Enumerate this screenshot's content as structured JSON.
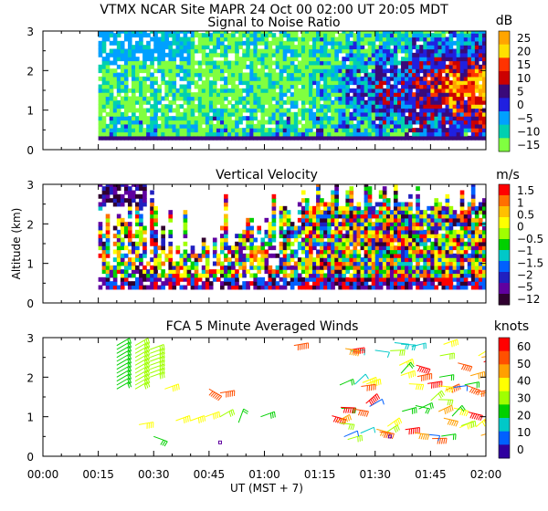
{
  "header": {
    "title": "VTMX  NCAR Site  MAPR 24 Oct 00  02:00 UT  20:05  MDT"
  },
  "ylabel": "Altitude (km)",
  "xlabel": "UT  (MST + 7)",
  "colors": {
    "frame": "#000000",
    "background": "#ffffff"
  },
  "chart_data": [
    {
      "type": "heatmap",
      "title": "Signal to Noise Ratio",
      "units": "dB",
      "x_range_minutes": [
        0,
        120
      ],
      "ylim": [
        0,
        3
      ],
      "y_ticks": [
        "0",
        "1",
        "2",
        "3"
      ],
      "data_extent_minutes": [
        15,
        120
      ],
      "data_altitude_km": [
        0.25,
        3.0
      ],
      "colorbar": {
        "labels": [
          "25",
          "20",
          "15",
          "10",
          "5",
          "0",
          "−5",
          "−10",
          "−15"
        ],
        "colors": [
          "#ffa500",
          "#ffe000",
          "#ff3300",
          "#cc0000",
          "#3a0a7a",
          "#2020e0",
          "#00a0ff",
          "#00d0b0",
          "#80ff40"
        ]
      }
    },
    {
      "type": "heatmap",
      "title": "Vertical Velocity",
      "units": "m/s",
      "x_range_minutes": [
        0,
        120
      ],
      "ylim": [
        0,
        3
      ],
      "y_ticks": [
        "0",
        "1",
        "2",
        "3"
      ],
      "data_extent_minutes": [
        15,
        120
      ],
      "data_altitude_km": [
        0.3,
        3.0
      ],
      "colorbar": {
        "labels": [
          "1.5",
          "1",
          "0.5",
          "0",
          "−0.5",
          "−1",
          "−1.5",
          "−2",
          "−5",
          "−12"
        ],
        "colors": [
          "#ff0000",
          "#ff7000",
          "#ffc000",
          "#ffff00",
          "#a0ff00",
          "#00d000",
          "#00c8c8",
          "#0060ff",
          "#2020c0",
          "#6000a0",
          "#300030"
        ]
      }
    },
    {
      "type": "scatter",
      "title": "FCA 5 Minute Averaged Winds",
      "units": "knots",
      "x_range_minutes": [
        0,
        120
      ],
      "ylim": [
        0,
        3
      ],
      "y_ticks": [
        "0",
        "1",
        "2",
        "3"
      ],
      "colorbar": {
        "labels": [
          "60",
          "50",
          "40",
          "30",
          "20",
          "10",
          "0"
        ],
        "colors": [
          "#ff0000",
          "#ff5000",
          "#ffa000",
          "#ffff00",
          "#a0ff00",
          "#00d000",
          "#00c8c8",
          "#0060ff",
          "#3000a0"
        ]
      },
      "x_ticks": [
        "00:00",
        "00:15",
        "00:30",
        "00:45",
        "01:00",
        "01:15",
        "01:30",
        "01:45",
        "02:00"
      ]
    }
  ]
}
